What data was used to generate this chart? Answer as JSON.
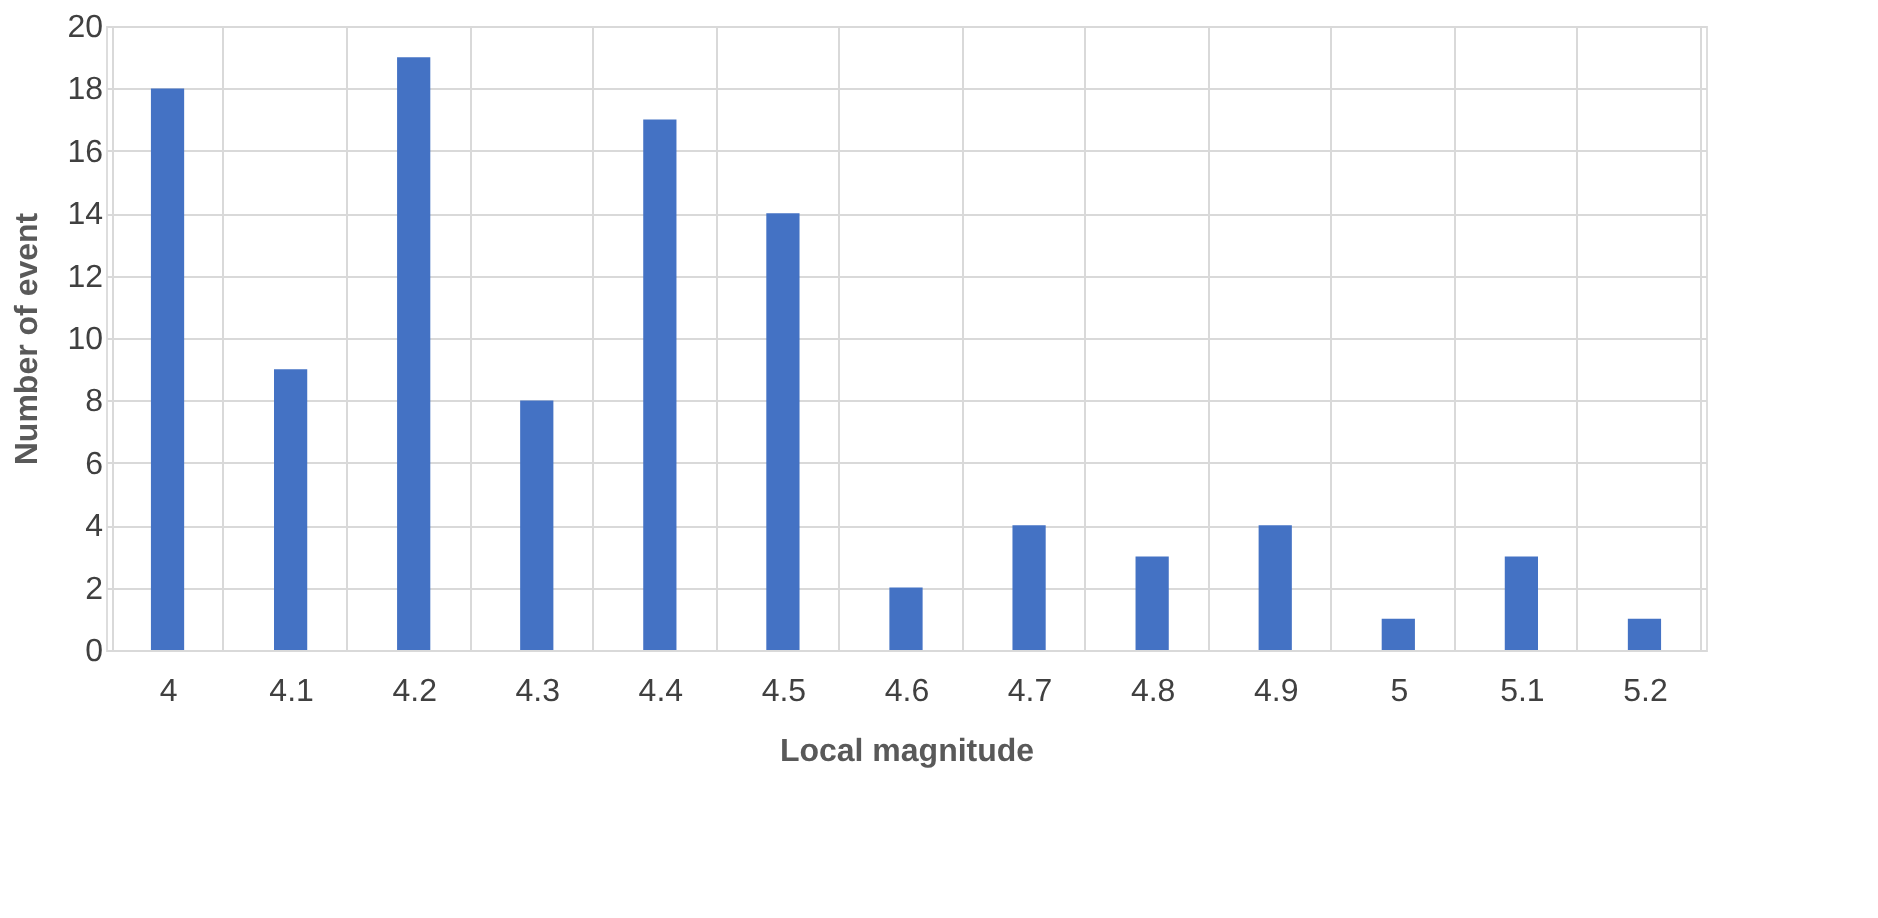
{
  "chart_data": {
    "type": "bar",
    "xlabel": "Local magnitude",
    "ylabel": "Number of event",
    "categories": [
      "4",
      "4.1",
      "4.2",
      "4.3",
      "4.4",
      "4.5",
      "4.6",
      "4.7",
      "4.8",
      "4.9",
      "5",
      "5.1",
      "5.2"
    ],
    "values": [
      18,
      9,
      19,
      8,
      17,
      14,
      2,
      4,
      3,
      4,
      1,
      3,
      1
    ],
    "color": "#4472c4",
    "ylim": [
      0,
      20
    ],
    "yticks": [
      0,
      2,
      4,
      6,
      8,
      10,
      12,
      14,
      16,
      18,
      20
    ],
    "grid": true
  }
}
